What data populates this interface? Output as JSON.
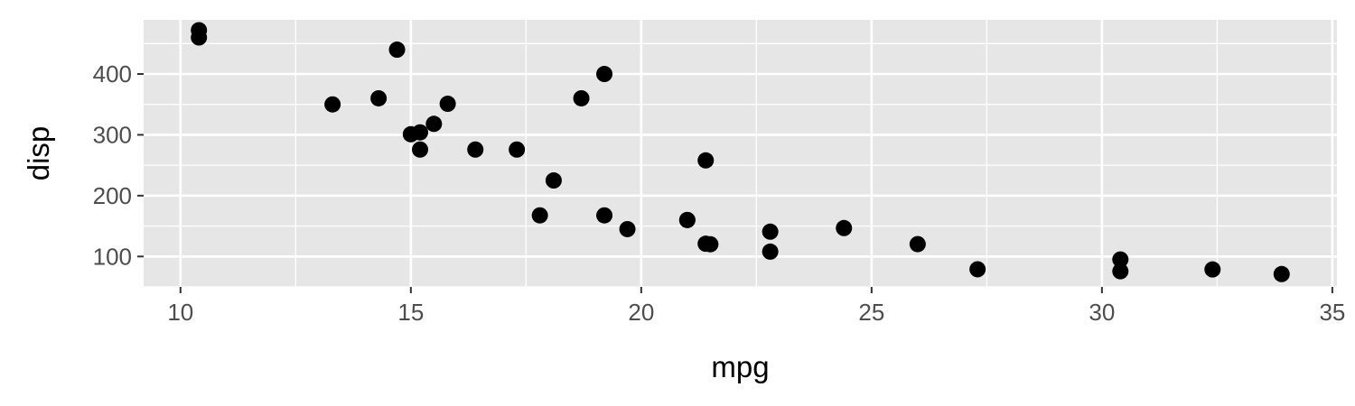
{
  "chart_data": {
    "type": "scatter",
    "title": "",
    "xlabel": "mpg",
    "ylabel": "disp",
    "xlim": [
      9.2,
      35.1
    ],
    "ylim": [
      50.0,
      489.0
    ],
    "x_ticks": [
      10,
      15,
      20,
      25,
      30,
      35
    ],
    "y_ticks": [
      100,
      200,
      300,
      400
    ],
    "grid": true,
    "legend": "none",
    "colors": {
      "panel": "#e6e6e6",
      "grid": "#ffffff",
      "point": "#000000",
      "tick_text": "#4d4d4d",
      "axis_title": "#000000"
    },
    "points": [
      {
        "x": 21.0,
        "y": 160.0
      },
      {
        "x": 21.0,
        "y": 160.0
      },
      {
        "x": 22.8,
        "y": 108.0
      },
      {
        "x": 21.4,
        "y": 258.0
      },
      {
        "x": 18.7,
        "y": 360.0
      },
      {
        "x": 18.1,
        "y": 225.0
      },
      {
        "x": 14.3,
        "y": 360.0
      },
      {
        "x": 24.4,
        "y": 146.7
      },
      {
        "x": 22.8,
        "y": 140.8
      },
      {
        "x": 19.2,
        "y": 167.6
      },
      {
        "x": 17.8,
        "y": 167.6
      },
      {
        "x": 16.4,
        "y": 275.8
      },
      {
        "x": 17.3,
        "y": 275.8
      },
      {
        "x": 15.2,
        "y": 275.8
      },
      {
        "x": 10.4,
        "y": 472.0
      },
      {
        "x": 10.4,
        "y": 460.0
      },
      {
        "x": 14.7,
        "y": 440.0
      },
      {
        "x": 32.4,
        "y": 78.7
      },
      {
        "x": 30.4,
        "y": 75.7
      },
      {
        "x": 33.9,
        "y": 71.1
      },
      {
        "x": 21.5,
        "y": 120.1
      },
      {
        "x": 15.5,
        "y": 318.0
      },
      {
        "x": 15.2,
        "y": 304.0
      },
      {
        "x": 13.3,
        "y": 350.0
      },
      {
        "x": 19.2,
        "y": 400.0
      },
      {
        "x": 27.3,
        "y": 79.0
      },
      {
        "x": 26.0,
        "y": 120.3
      },
      {
        "x": 30.4,
        "y": 95.1
      },
      {
        "x": 15.8,
        "y": 351.0
      },
      {
        "x": 19.7,
        "y": 145.0
      },
      {
        "x": 15.0,
        "y": 301.0
      },
      {
        "x": 21.4,
        "y": 121.0
      }
    ]
  }
}
